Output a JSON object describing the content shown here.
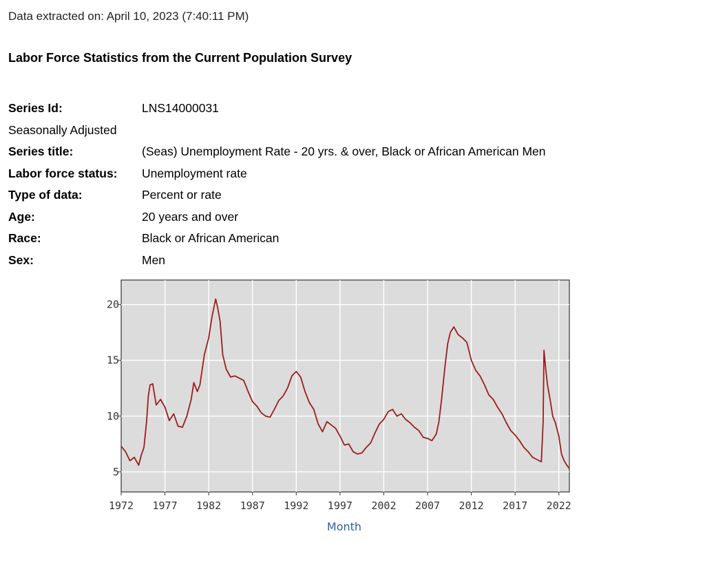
{
  "extracted": "Data extracted on: April 10, 2023 (7:40:11 PM)",
  "title": "Labor Force Statistics from the Current Population Survey",
  "meta": [
    {
      "key": "Series Id:",
      "value": "LNS14000031",
      "bold": true
    },
    {
      "key": "Seasonally Adjusted",
      "value": "",
      "bold": false
    },
    {
      "key": "Series title:",
      "value": "(Seas) Unemployment Rate - 20 yrs. & over, Black or African American Men",
      "bold": true
    },
    {
      "key": "Labor force status:",
      "value": "Unemployment rate",
      "bold": true
    },
    {
      "key": "Type of data:",
      "value": "Percent or rate",
      "bold": true
    },
    {
      "key": "Age:",
      "value": "20 years and over",
      "bold": true
    },
    {
      "key": "Race:",
      "value": "Black or African American",
      "bold": true
    },
    {
      "key": "Sex:",
      "value": "Men",
      "bold": true
    }
  ],
  "chart_data": {
    "type": "line",
    "title": "",
    "xlabel": "Month",
    "ylabel": "",
    "xlim": [
      1972,
      2023.2
    ],
    "ylim": [
      3.2,
      22.2
    ],
    "xticks": [
      1972,
      1977,
      1982,
      1987,
      1992,
      1997,
      2002,
      2007,
      2012,
      2017,
      2022
    ],
    "yticks": [
      5,
      10,
      15,
      20
    ],
    "grid": true,
    "background": "#dcdcdc",
    "line_color": "#9b1c1c",
    "series": [
      {
        "x": [
          1972.0,
          1972.5,
          1973.0,
          1973.5,
          1974.0,
          1974.3,
          1974.6,
          1974.9,
          1975.1,
          1975.3,
          1975.6,
          1976.0,
          1976.5,
          1977.0,
          1977.5,
          1978.0,
          1978.5,
          1979.0,
          1979.5,
          1980.0,
          1980.3,
          1980.7,
          1981.0,
          1981.5,
          1982.0,
          1982.4,
          1982.8,
          1983.0,
          1983.3,
          1983.6,
          1984.0,
          1984.5,
          1985.0,
          1985.5,
          1986.0,
          1986.5,
          1987.0,
          1987.5,
          1988.0,
          1988.5,
          1989.0,
          1989.5,
          1990.0,
          1990.5,
          1991.0,
          1991.5,
          1992.0,
          1992.5,
          1993.0,
          1993.5,
          1994.0,
          1994.5,
          1995.0,
          1995.5,
          1996.0,
          1996.5,
          1997.0,
          1997.5,
          1998.0,
          1998.5,
          1999.0,
          1999.5,
          2000.0,
          2000.5,
          2001.0,
          2001.5,
          2002.0,
          2002.5,
          2003.0,
          2003.5,
          2004.0,
          2004.5,
          2005.0,
          2005.5,
          2006.0,
          2006.5,
          2007.0,
          2007.5,
          2008.0,
          2008.3,
          2008.6,
          2009.0,
          2009.3,
          2009.6,
          2010.0,
          2010.5,
          2011.0,
          2011.5,
          2012.0,
          2012.5,
          2013.0,
          2013.5,
          2014.0,
          2014.5,
          2015.0,
          2015.5,
          2016.0,
          2016.5,
          2017.0,
          2017.5,
          2018.0,
          2018.5,
          2019.0,
          2019.5,
          2020.0,
          2020.2,
          2020.3,
          2020.5,
          2020.7,
          2021.0,
          2021.3,
          2021.6,
          2022.0,
          2022.3,
          2022.6,
          2022.9,
          2023.2
        ],
        "y": [
          7.3,
          6.8,
          6.0,
          6.3,
          5.6,
          6.5,
          7.2,
          9.5,
          11.8,
          12.8,
          12.9,
          11.0,
          11.5,
          10.8,
          9.6,
          10.2,
          9.1,
          9.0,
          10.0,
          11.5,
          13.0,
          12.2,
          12.8,
          15.5,
          17.0,
          19.0,
          20.5,
          19.8,
          18.5,
          15.5,
          14.2,
          13.5,
          13.6,
          13.4,
          13.2,
          12.2,
          11.3,
          10.9,
          10.3,
          10.0,
          9.9,
          10.6,
          11.4,
          11.8,
          12.5,
          13.6,
          14.0,
          13.5,
          12.2,
          11.2,
          10.6,
          9.3,
          8.6,
          9.5,
          9.2,
          8.9,
          8.2,
          7.4,
          7.5,
          6.8,
          6.6,
          6.7,
          7.2,
          7.6,
          8.5,
          9.3,
          9.7,
          10.4,
          10.6,
          10.0,
          10.2,
          9.7,
          9.4,
          9.0,
          8.7,
          8.1,
          8.0,
          7.8,
          8.4,
          9.5,
          11.5,
          14.5,
          16.5,
          17.5,
          18.0,
          17.3,
          17.0,
          16.6,
          15.0,
          14.1,
          13.6,
          12.8,
          11.9,
          11.5,
          10.8,
          10.2,
          9.4,
          8.7,
          8.3,
          7.8,
          7.2,
          6.8,
          6.3,
          6.1,
          5.9,
          9.5,
          15.9,
          14.2,
          12.8,
          11.5,
          10.0,
          9.4,
          8.2,
          6.6,
          6.0,
          5.6,
          5.3
        ]
      }
    ]
  }
}
